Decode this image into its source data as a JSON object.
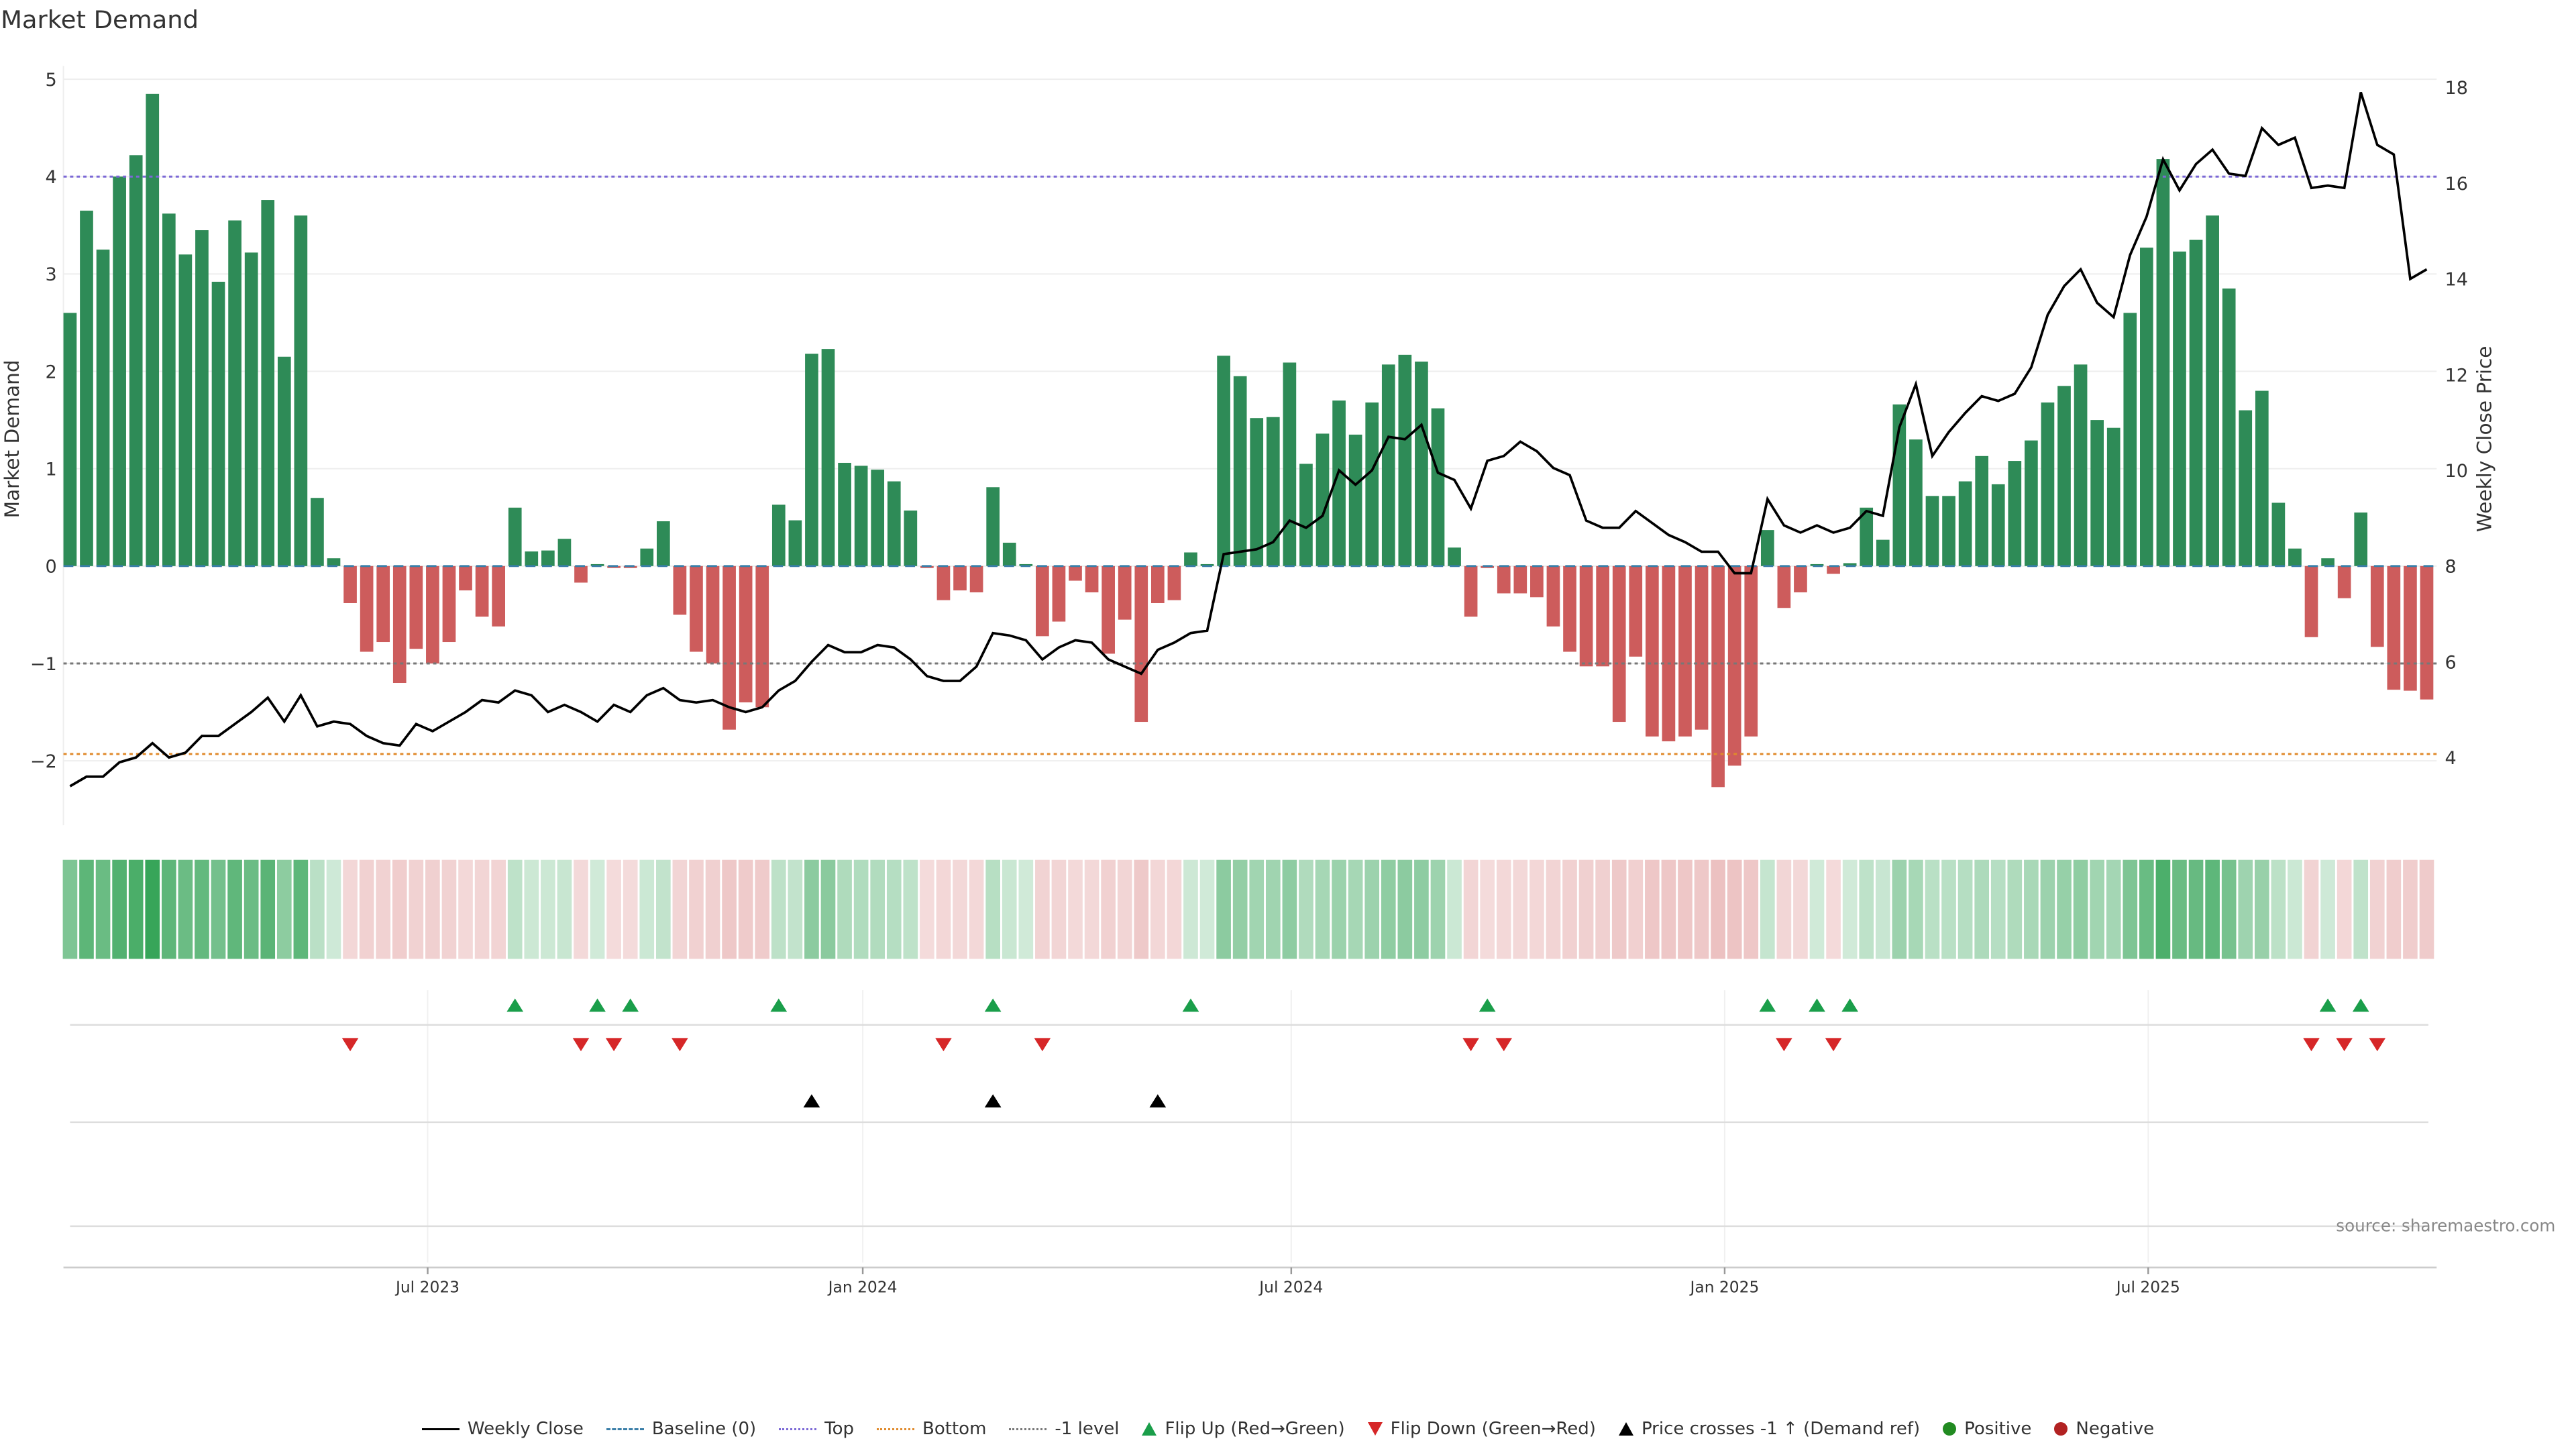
{
  "chart_data": {
    "type": "bar",
    "title": "Market Demand",
    "ylabel": "Market Demand",
    "y2label": "Weekly Close Price",
    "ylim": [
      -2.6,
      5.1
    ],
    "y2lim": [
      2.8,
      18.3
    ],
    "yticks": [
      "5",
      "4",
      "3",
      "2",
      "1",
      "0",
      "−1",
      "−2"
    ],
    "ytick_values": [
      5,
      4,
      3,
      2,
      1,
      0,
      -1,
      -2
    ],
    "y2ticks": [
      "18",
      "16",
      "14",
      "12",
      "10",
      "8",
      "6",
      "4"
    ],
    "y2tick_values": [
      18,
      16,
      14,
      12,
      10,
      8,
      6,
      4
    ],
    "interval": "weekly",
    "x_ticks": [
      {
        "label": "Jul 2023",
        "week": 21.7
      },
      {
        "label": "Jan 2024",
        "week": 48.1
      },
      {
        "label": "Jul 2024",
        "week": 74.1
      },
      {
        "label": "Jan 2025",
        "week": 100.4
      },
      {
        "label": "Jul 2025",
        "week": 126.1
      }
    ],
    "reference_lines": {
      "baseline": 0,
      "top": 4,
      "bottom": -1.93,
      "minus1_level": -1
    },
    "demand": [
      2.6,
      3.65,
      3.25,
      4.0,
      4.22,
      4.85,
      3.62,
      3.2,
      3.45,
      2.92,
      3.55,
      3.22,
      3.76,
      2.15,
      3.6,
      0.7,
      0.08,
      -0.38,
      -0.88,
      -0.78,
      -1.2,
      -0.85,
      -1.0,
      -0.78,
      -0.25,
      -0.52,
      -0.62,
      0.6,
      0.15,
      0.16,
      0.28,
      -0.17,
      0.02,
      -0.02,
      -0.02,
      0.18,
      0.46,
      -0.5,
      -0.88,
      -1.0,
      -1.68,
      -1.4,
      -1.45,
      0.63,
      0.47,
      2.18,
      2.23,
      1.06,
      1.03,
      0.99,
      0.87,
      0.57,
      -0.02,
      -0.35,
      -0.25,
      -0.27,
      0.81,
      0.24,
      0.02,
      -0.72,
      -0.57,
      -0.15,
      -0.27,
      -0.9,
      -0.55,
      -1.6,
      -0.38,
      -0.35,
      0.14,
      0.02,
      2.16,
      1.95,
      1.52,
      1.53,
      2.09,
      1.05,
      1.36,
      1.7,
      1.35,
      1.68,
      2.07,
      2.17,
      2.1,
      1.62,
      0.19,
      -0.52,
      -0.02,
      -0.28,
      -0.28,
      -0.32,
      -0.62,
      -0.88,
      -1.03,
      -1.03,
      -1.6,
      -0.93,
      -1.75,
      -1.8,
      -1.75,
      -1.68,
      -2.27,
      -2.05,
      -1.75,
      0.37,
      -0.43,
      -0.27,
      0.02,
      -0.08,
      0.03,
      0.6,
      0.27,
      1.66,
      1.3,
      0.72,
      0.72,
      0.87,
      1.13,
      0.84,
      1.08,
      1.29,
      1.68,
      1.85,
      2.07,
      1.5,
      1.42,
      2.6,
      3.27,
      4.18,
      3.23,
      3.35,
      3.6,
      2.85,
      1.6,
      1.8,
      0.65,
      0.18,
      -0.73,
      0.08,
      -0.33,
      0.55,
      -0.83,
      -1.27,
      -1.28,
      -1.37
    ],
    "weekly_close": [
      3.4,
      3.6,
      3.6,
      3.9,
      4.0,
      4.3,
      4.0,
      4.1,
      4.45,
      4.45,
      4.7,
      4.95,
      5.25,
      4.75,
      5.3,
      4.65,
      4.75,
      4.7,
      4.45,
      4.3,
      4.25,
      4.7,
      4.55,
      4.75,
      4.95,
      5.2,
      5.15,
      5.4,
      5.3,
      4.95,
      5.1,
      4.95,
      4.75,
      5.1,
      4.95,
      5.3,
      5.45,
      5.2,
      5.15,
      5.2,
      5.05,
      4.95,
      5.05,
      5.4,
      5.6,
      6.0,
      6.35,
      6.2,
      6.2,
      6.35,
      6.3,
      6.05,
      5.7,
      5.6,
      5.6,
      5.9,
      6.6,
      6.55,
      6.45,
      6.05,
      6.3,
      6.45,
      6.4,
      6.05,
      5.9,
      5.75,
      6.25,
      6.4,
      6.6,
      6.65,
      8.25,
      8.3,
      8.35,
      8.5,
      8.95,
      8.8,
      9.05,
      10.0,
      9.7,
      10.0,
      10.7,
      10.65,
      10.95,
      9.95,
      9.8,
      9.2,
      10.2,
      10.3,
      10.6,
      10.4,
      10.05,
      9.9,
      8.95,
      8.8,
      8.8,
      9.15,
      8.9,
      8.65,
      8.5,
      8.3,
      8.3,
      7.85,
      7.85,
      9.4,
      8.85,
      8.7,
      8.85,
      8.7,
      8.8,
      9.15,
      9.05,
      10.9,
      11.8,
      10.3,
      10.8,
      11.2,
      11.55,
      11.45,
      11.6,
      12.15,
      13.25,
      13.85,
      14.2,
      13.5,
      13.2,
      14.5,
      15.3,
      16.5,
      15.85,
      16.4,
      16.7,
      16.2,
      16.15,
      17.15,
      16.8,
      16.95,
      15.9,
      15.95,
      15.9,
      17.9,
      16.8,
      16.6,
      14.0,
      14.2
    ],
    "flip_up_weeks": [
      27,
      32,
      34,
      43,
      56,
      68,
      86,
      103,
      106,
      108,
      137,
      139
    ],
    "flip_down_weeks": [
      17,
      31,
      33,
      37,
      53,
      59,
      85,
      87,
      104,
      107,
      136,
      138,
      140
    ],
    "price_cross_weeks": [
      45,
      56,
      66
    ],
    "legend": {
      "position": "bottom",
      "entries": [
        "Weekly Close",
        "Baseline (0)",
        "Top",
        "Bottom",
        "-1 level",
        "Flip Up (Red→Green)",
        "Flip Down (Green→Red)",
        "Price crosses -1 ↑ (Demand ref)",
        "Positive",
        "Negative"
      ]
    },
    "source": "source: sharemaestro.com"
  },
  "colors": {
    "positive": "#2e8b57",
    "negative": "#cd5c5c",
    "line": "#000000",
    "top": "#7b68d6",
    "bottom": "#e08a2c",
    "minus1": "#777777",
    "baseline": "#3a7ea8",
    "flip_up": "#1a9e4a",
    "flip_down": "#d62728",
    "pos_dot": "#228b22",
    "neg_dot": "#b22222"
  }
}
